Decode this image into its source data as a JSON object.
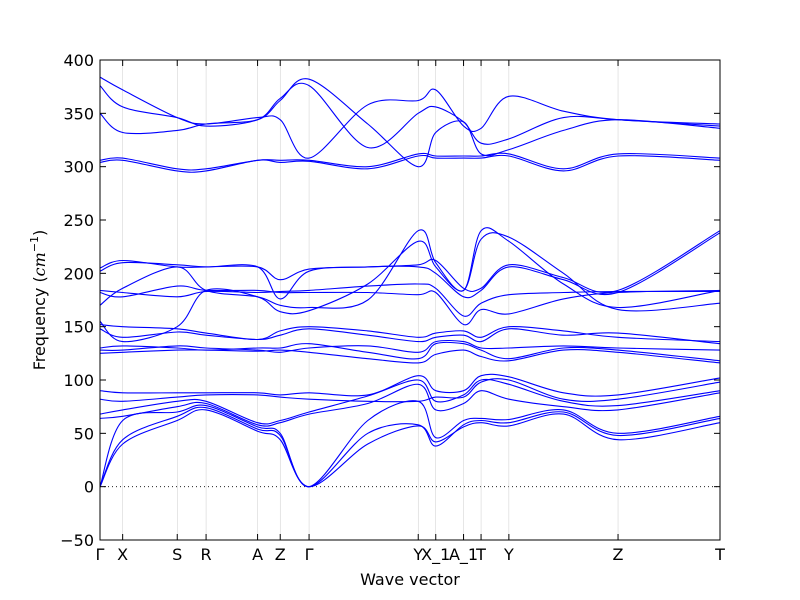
{
  "chart_data": {
    "type": "line",
    "xlabel": "Wave vector",
    "ylabel_text": "Frequency (",
    "ylabel_unit": "cm",
    "ylabel_exp": "−1",
    "ylabel_close": ")",
    "ylim": [
      -50,
      400
    ],
    "y_ticks": [
      -50,
      0,
      50,
      100,
      150,
      200,
      250,
      300,
      350,
      400
    ],
    "x_ticks": [
      {
        "label": "Γ",
        "x": 0.0
      },
      {
        "label": "X",
        "x": 0.22
      },
      {
        "label": "S",
        "x": 0.75
      },
      {
        "label": "R",
        "x": 1.03
      },
      {
        "label": "A",
        "x": 1.53
      },
      {
        "label": "Z",
        "x": 1.75
      },
      {
        "label": "Γ",
        "x": 2.03
      },
      {
        "label": "Y",
        "x": 3.09
      },
      {
        "label": "X_1",
        "x": 3.26
      },
      {
        "label": "A_1",
        "x": 3.53
      },
      {
        "label": "T",
        "x": 3.7
      },
      {
        "label": "Y",
        "x": 3.97
      },
      {
        "label": "Z",
        "x": 5.03
      },
      {
        "label": "T",
        "x": 6.02
      }
    ],
    "xlim": [
      0,
      6.02
    ],
    "zero_line": true,
    "line_color": "#0000ff",
    "series_x": [
      0.0,
      0.22,
      0.75,
      1.03,
      1.53,
      1.75,
      2.03,
      2.6,
      3.09,
      3.26,
      3.53,
      3.7,
      3.97,
      4.5,
      5.03,
      6.02
    ],
    "series": [
      {
        "values": [
          0,
          40,
          62,
          72,
          52,
          44,
          0,
          40,
          57,
          42,
          56,
          60,
          57,
          68,
          44,
          60
        ]
      },
      {
        "values": [
          0,
          44,
          66,
          74,
          54,
          48,
          0,
          50,
          58,
          38,
          58,
          62,
          60,
          70,
          48,
          64
        ]
      },
      {
        "values": [
          0,
          62,
          70,
          76,
          56,
          50,
          0,
          62,
          80,
          46,
          62,
          64,
          63,
          72,
          50,
          66
        ]
      },
      {
        "values": [
          64,
          66,
          75,
          78,
          58,
          60,
          68,
          78,
          96,
          72,
          78,
          90,
          82,
          75,
          72,
          88
        ]
      },
      {
        "values": [
          68,
          72,
          80,
          80,
          60,
          62,
          70,
          85,
          100,
          80,
          86,
          100,
          96,
          80,
          76,
          90
        ]
      },
      {
        "values": [
          82,
          80,
          84,
          86,
          86,
          84,
          82,
          80,
          80,
          84,
          84,
          98,
          100,
          82,
          82,
          98
        ]
      },
      {
        "values": [
          90,
          88,
          88,
          88,
          88,
          86,
          88,
          86,
          104,
          90,
          90,
          104,
          103,
          88,
          86,
          102
        ]
      },
      {
        "values": [
          125,
          126,
          128,
          128,
          127,
          128,
          126,
          120,
          116,
          124,
          128,
          122,
          118,
          128,
          126,
          116
        ]
      },
      {
        "values": [
          130,
          132,
          130,
          128,
          130,
          130,
          134,
          126,
          120,
          134,
          134,
          128,
          120,
          130,
          128,
          118
        ]
      },
      {
        "values": [
          128,
          128,
          132,
          130,
          128,
          126,
          130,
          132,
          126,
          136,
          136,
          130,
          130,
          132,
          130,
          128
        ]
      },
      {
        "values": [
          148,
          140,
          145,
          142,
          138,
          142,
          148,
          142,
          136,
          140,
          142,
          136,
          148,
          142,
          144,
          134
        ]
      },
      {
        "values": [
          152,
          150,
          148,
          144,
          138,
          146,
          150,
          146,
          140,
          144,
          146,
          140,
          150,
          146,
          140,
          136
        ]
      },
      {
        "values": [
          155,
          136,
          150,
          184,
          178,
          164,
          165,
          190,
          230,
          206,
          184,
          232,
          234,
          200,
          166,
          172
        ]
      },
      {
        "values": [
          170,
          186,
          206,
          184,
          178,
          170,
          168,
          175,
          240,
          210,
          184,
          240,
          230,
          190,
          168,
          184
        ]
      },
      {
        "values": [
          182,
          178,
          188,
          184,
          184,
          182,
          182,
          182,
          180,
          182,
          152,
          166,
          162,
          176,
          182,
          184
        ]
      },
      {
        "values": [
          184,
          182,
          178,
          183,
          182,
          183,
          184,
          188,
          190,
          186,
          160,
          172,
          180,
          182,
          183,
          183
        ]
      },
      {
        "values": [
          202,
          210,
          208,
          206,
          206,
          176,
          202,
          206,
          206,
          200,
          178,
          184,
          206,
          194,
          182,
          238
        ]
      },
      {
        "values": [
          205,
          212,
          206,
          206,
          206,
          194,
          204,
          206,
          208,
          212,
          186,
          186,
          208,
          196,
          184,
          240
        ]
      },
      {
        "values": [
          304,
          306,
          296,
          296,
          306,
          304,
          305,
          298,
          310,
          308,
          308,
          308,
          310,
          296,
          310,
          306
        ]
      },
      {
        "values": [
          306,
          308,
          298,
          298,
          306,
          306,
          306,
          300,
          312,
          310,
          310,
          310,
          312,
          298,
          312,
          308
        ]
      },
      {
        "values": [
          350,
          332,
          334,
          340,
          344,
          362,
          382,
          340,
          300,
          332,
          342,
          312,
          316,
          334,
          344,
          336
        ]
      },
      {
        "values": [
          376,
          356,
          346,
          338,
          344,
          364,
          376,
          318,
          350,
          356,
          342,
          322,
          326,
          346,
          344,
          338
        ]
      },
      {
        "values": [
          384,
          372,
          346,
          340,
          346,
          344,
          308,
          358,
          362,
          372,
          338,
          336,
          366,
          352,
          344,
          340
        ]
      }
    ]
  }
}
